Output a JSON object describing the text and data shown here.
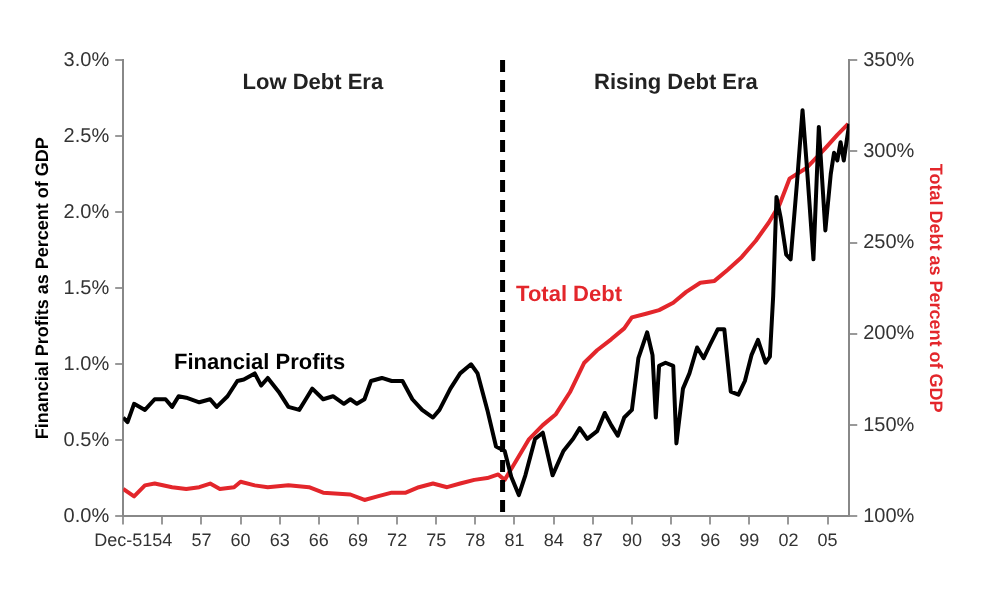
{
  "chart_data": {
    "type": "line",
    "ylabel": "Financial Profits as Percent of GDP",
    "y2label": "Total Debt as Percent of GDP",
    "annotations": [
      "Low Debt Era",
      "Rising Debt Era"
    ],
    "series": [
      {
        "name": "Financial Profits",
        "color": "#000000",
        "x": [
          "1951-12",
          "1952-04",
          "1952-10",
          "1953-08",
          "1954-05",
          "1955-03",
          "1955-09",
          "1956-03",
          "1956-10",
          "1957-10",
          "1958-08",
          "1959-02",
          "1959-12",
          "1960-09",
          "1961-03",
          "1962-01",
          "1962-07",
          "1963-01",
          "1963-11",
          "1964-08",
          "1965-06",
          "1965-12",
          "1966-06",
          "1967-04",
          "1968-01",
          "1968-11",
          "1969-05",
          "1969-11",
          "1970-06",
          "1970-12",
          "1971-10",
          "1972-07",
          "1973-05",
          "1974-02",
          "1974-11",
          "1975-09",
          "1976-03",
          "1977-01",
          "1977-10",
          "1978-08",
          "1979-02",
          "1979-11",
          "1980-07",
          "1981-03",
          "1981-09",
          "1982-04",
          "1982-10",
          "1983-07",
          "1984-02",
          "1984-11",
          "1985-09",
          "1986-06",
          "1986-12",
          "1987-07",
          "1988-04",
          "1988-11",
          "1989-05",
          "1989-11",
          "1990-05",
          "1990-12",
          "1991-06",
          "1992-02",
          "1992-07",
          "1992-10",
          "1993-01",
          "1993-07",
          "1994-02",
          "1994-05",
          "1994-11",
          "1995-05",
          "1995-12",
          "1996-06",
          "1996-12",
          "1997-07",
          "1998-01",
          "1998-07",
          "1999-02",
          "1999-08",
          "2000-02",
          "2000-08",
          "2001-03",
          "2001-07",
          "2001-10",
          "2002-01",
          "2002-05",
          "2002-10",
          "2003-02",
          "2003-08",
          "2004-01",
          "2004-05",
          "2004-11",
          "2005-04",
          "2005-10",
          "2006-03",
          "2006-06",
          "2006-09",
          "2006-12",
          "2007-03",
          "2007-08"
        ],
        "values": [
          0.65,
          0.62,
          0.74,
          0.7,
          0.77,
          0.77,
          0.72,
          0.79,
          0.78,
          0.75,
          0.77,
          0.72,
          0.79,
          0.89,
          0.9,
          0.94,
          0.86,
          0.91,
          0.82,
          0.72,
          0.7,
          0.77,
          0.84,
          0.77,
          0.79,
          0.74,
          0.77,
          0.74,
          0.77,
          0.89,
          0.91,
          0.89,
          0.89,
          0.77,
          0.7,
          0.65,
          0.7,
          0.84,
          0.94,
          1.0,
          0.94,
          0.7,
          0.46,
          0.43,
          0.26,
          0.14,
          0.27,
          0.51,
          0.55,
          0.27,
          0.43,
          0.51,
          0.58,
          0.51,
          0.56,
          0.68,
          0.6,
          0.53,
          0.65,
          0.7,
          1.04,
          1.21,
          1.06,
          0.65,
          0.99,
          1.01,
          0.99,
          0.48,
          0.84,
          0.94,
          1.11,
          1.04,
          1.13,
          1.23,
          1.23,
          0.82,
          0.8,
          0.89,
          1.06,
          1.16,
          1.01,
          1.05,
          1.45,
          2.1,
          1.96,
          1.72,
          1.69,
          2.2,
          2.67,
          2.3,
          1.69,
          2.56,
          1.88,
          2.25,
          2.39,
          2.34,
          2.46,
          2.34,
          2.58
        ]
      },
      {
        "name": "Total Debt",
        "color": "#e3262b",
        "axis": "y2",
        "x": [
          "1951-12",
          "1952-10",
          "1953-08",
          "1954-05",
          "1955-09",
          "1956-10",
          "1957-10",
          "1958-08",
          "1959-05",
          "1960-06",
          "1960-12",
          "1962-01",
          "1963-01",
          "1964-08",
          "1966-03",
          "1967-04",
          "1969-05",
          "1970-06",
          "1971-06",
          "1972-07",
          "1973-08",
          "1974-08",
          "1975-09",
          "1976-10",
          "1977-10",
          "1978-11",
          "1979-11",
          "1980-09",
          "1981-03",
          "1981-09",
          "1983-01",
          "1984-02",
          "1985-02",
          "1986-03",
          "1987-04",
          "1988-04",
          "1989-05",
          "1990-05",
          "1990-12",
          "1992-01",
          "1993-01",
          "1994-02",
          "1995-02",
          "1996-03",
          "1997-04",
          "1998-04",
          "1999-05",
          "2000-06",
          "2001-06",
          "2002-04",
          "2003-01",
          "2004-05",
          "2005-09",
          "2006-09",
          "2007-07"
        ],
        "values": [
          115,
          111,
          117,
          118,
          116,
          115,
          116,
          118,
          115,
          116,
          119,
          117,
          116,
          117,
          116,
          113,
          112,
          109,
          111,
          113,
          113,
          116,
          118,
          116,
          118,
          120,
          121,
          123,
          120,
          126,
          142,
          150,
          156,
          168,
          184,
          191,
          197,
          203,
          209,
          211,
          213,
          217,
          223,
          228,
          229,
          235,
          242,
          251,
          261,
          271,
          285,
          291,
          301,
          309,
          315
        ]
      }
    ],
    "xlim": [
      "1951-12",
      "2007-08"
    ],
    "xticks": [
      {
        "value": "1951-12",
        "label": "Dec-51"
      },
      {
        "value": "1954-12",
        "label": "54"
      },
      {
        "value": "1957-12",
        "label": "57"
      },
      {
        "value": "1960-12",
        "label": "60"
      },
      {
        "value": "1963-12",
        "label": "63"
      },
      {
        "value": "1966-12",
        "label": "66"
      },
      {
        "value": "1969-12",
        "label": "69"
      },
      {
        "value": "1972-12",
        "label": "72"
      },
      {
        "value": "1975-12",
        "label": "75"
      },
      {
        "value": "1978-12",
        "label": "78"
      },
      {
        "value": "1981-12",
        "label": "81"
      },
      {
        "value": "1984-12",
        "label": "84"
      },
      {
        "value": "1987-12",
        "label": "87"
      },
      {
        "value": "1990-12",
        "label": "90"
      },
      {
        "value": "1993-12",
        "label": "93"
      },
      {
        "value": "1996-12",
        "label": "96"
      },
      {
        "value": "1999-12",
        "label": "99"
      },
      {
        "value": "2002-12",
        "label": "02"
      },
      {
        "value": "2005-12",
        "label": "05"
      }
    ],
    "ylim": [
      0,
      3
    ],
    "yticks": [
      {
        "value": 0,
        "label": "0.0%"
      },
      {
        "value": 0.5,
        "label": "0.5%"
      },
      {
        "value": 1,
        "label": "1.0%"
      },
      {
        "value": 1.5,
        "label": "1.5%"
      },
      {
        "value": 2,
        "label": "2.0%"
      },
      {
        "value": 2.5,
        "label": "2.5%"
      },
      {
        "value": 3,
        "label": "3.0%"
      }
    ],
    "y2lim": [
      100,
      350
    ],
    "y2ticks": [
      {
        "value": 100,
        "label": "100%"
      },
      {
        "value": 150,
        "label": "150%"
      },
      {
        "value": 200,
        "label": "200%"
      },
      {
        "value": 250,
        "label": "250%"
      },
      {
        "value": 300,
        "label": "300%"
      },
      {
        "value": 350,
        "label": "350%"
      }
    ],
    "ref_lines": [
      {
        "axis": "x",
        "value": "1981-01",
        "color": "#000000",
        "line_style": "dashed"
      }
    ],
    "grid": false,
    "legend": false,
    "marker": "none",
    "line_style": "solid"
  }
}
